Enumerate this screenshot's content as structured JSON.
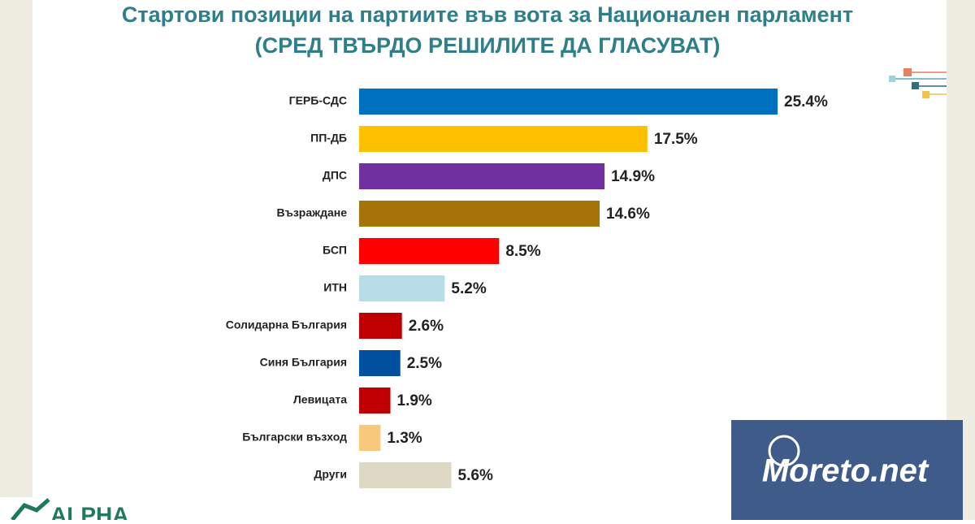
{
  "chart_data": {
    "type": "bar",
    "orientation": "horizontal",
    "title": "Стартови позиции на партиите във вота за Национален парламент",
    "subtitle": "(СРЕД ТВЪРДО РЕШИЛИТЕ ДА ГЛАСУВАТ)",
    "categories": [
      "ГЕРБ-СДС",
      "ПП-ДБ",
      "ДПС",
      "Възраждане",
      "БСП",
      "ИТН",
      "Солидарна България",
      "Синя България",
      "Левицата",
      "Български възход",
      "Други"
    ],
    "values": [
      25.4,
      17.5,
      14.9,
      14.6,
      8.5,
      5.2,
      2.6,
      2.5,
      1.9,
      1.3,
      5.6
    ],
    "value_labels": [
      "25.4%",
      "17.5%",
      "14.9%",
      "14.6%",
      "8.5%",
      "5.2%",
      "2.6%",
      "2.5%",
      "1.9%",
      "1.3%",
      "5.6%"
    ],
    "colors": [
      "#0070c0",
      "#ffc000",
      "#7030a0",
      "#a67408",
      "#ff0000",
      "#b7dde8",
      "#c00000",
      "#0050a0",
      "#c00000",
      "#f8c97a",
      "#ddd9c4"
    ]
  },
  "logo": "ALPHA",
  "watermark": "Moreto.net"
}
